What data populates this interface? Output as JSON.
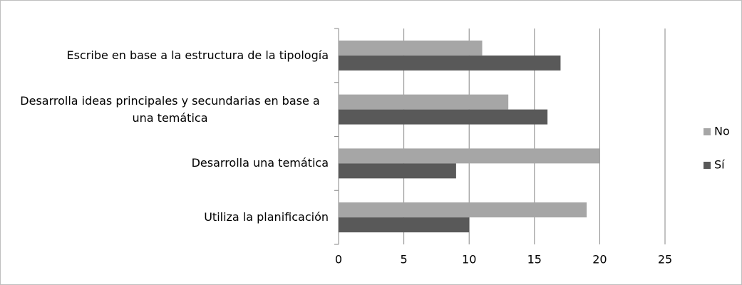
{
  "chart_data": {
    "type": "bar",
    "orientation": "horizontal",
    "categories": [
      "Escribe en base a la estructura de la tipología",
      "Desarrolla ideas principales y secundarias en base a una temática",
      "Desarrolla una temática",
      "Utiliza la planificación"
    ],
    "series": [
      {
        "name": "No",
        "color": "#a6a6a6",
        "values": [
          11,
          13,
          20,
          19
        ]
      },
      {
        "name": "Sí",
        "color": "#595959",
        "values": [
          17,
          16,
          9,
          10
        ]
      }
    ],
    "xlim": [
      0,
      25
    ],
    "xticks": [
      0,
      5,
      10,
      15,
      20,
      25
    ],
    "grid": true,
    "legend": "right"
  }
}
